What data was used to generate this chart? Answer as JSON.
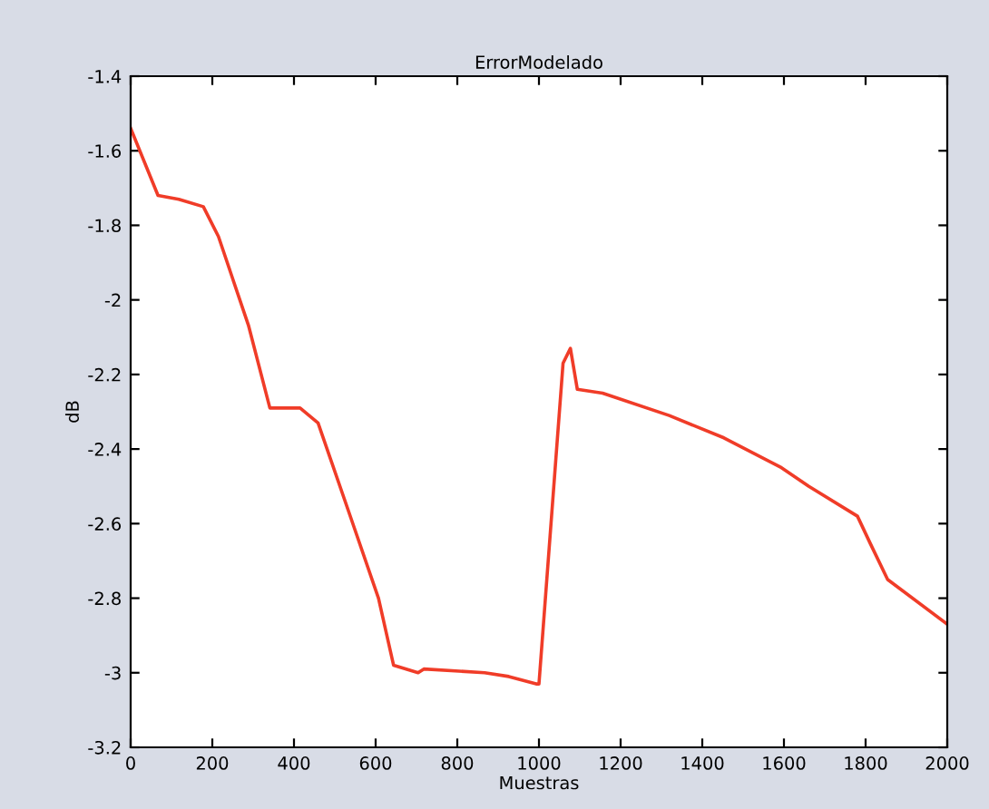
{
  "chart_data": {
    "type": "line",
    "title": "ErrorModelado",
    "xlabel": "Muestras",
    "ylabel": "dB",
    "x": [
      0,
      67,
      118,
      178,
      215,
      289,
      341,
      415,
      459,
      541,
      607,
      644,
      704,
      718,
      867,
      926,
      993,
      1000,
      1059,
      1077,
      1094,
      1156,
      1319,
      1453,
      1594,
      1661,
      1780,
      1810,
      1854,
      2000
    ],
    "series": [
      {
        "color": "#f03c28",
        "values": [
          -1.54,
          -1.72,
          -1.73,
          -1.75,
          -1.83,
          -2.07,
          -2.29,
          -2.29,
          -2.33,
          -2.59,
          -2.8,
          -2.98,
          -3.0,
          -2.99,
          -3.0,
          -3.01,
          -3.03,
          -3.03,
          -2.17,
          -2.13,
          -2.24,
          -2.25,
          -2.31,
          -2.37,
          -2.45,
          -2.5,
          -2.58,
          -2.65,
          -2.75,
          -2.87
        ]
      }
    ],
    "xlim": [
      0,
      2000
    ],
    "xticks": [
      0,
      200,
      400,
      600,
      800,
      1000,
      1200,
      1400,
      1600,
      1800,
      2000
    ],
    "ylim": [
      -3.2,
      -1.4
    ],
    "yticks": [
      -3.2,
      -3,
      -2.8,
      -2.6,
      -2.4,
      -2.2,
      -2,
      -1.8,
      -1.6,
      -1.4
    ],
    "grid": false,
    "legend": false
  }
}
